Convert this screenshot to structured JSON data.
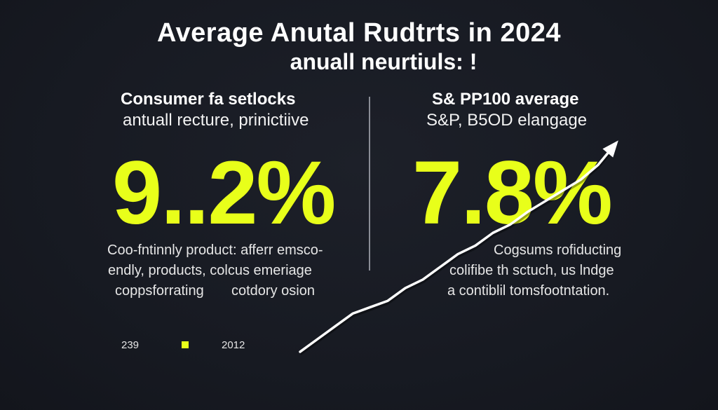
{
  "header": {
    "title_line1": "Average Anutal Rudtrts in 2024",
    "title_line2": "anuall neurtiuls: !"
  },
  "left_panel": {
    "heading": "Consumer fa setlocks",
    "subheading": "antuall recture, prinictiive",
    "value": "9..2%",
    "desc_line1": "Coo-fntinnly product: afferr emsco-",
    "desc_line2": "endly, products, colcus emeriage",
    "desc_line3_a": "coppsforrating",
    "desc_line3_b": "cotdory osion"
  },
  "right_panel": {
    "heading": "S& PP100 average",
    "subheading": "S&P, B5OD elangage",
    "value": "7.8%",
    "desc_line1": "Cogsums rofiducting",
    "desc_line2": "colifibe th sctuch, us lndge",
    "desc_line3": "a contiblil tomsfootntation."
  },
  "legend": {
    "item1_label": "239",
    "item2_label": "2012",
    "swatch_color": "#e8ff1a"
  },
  "colors": {
    "accent": "#e8ff1a",
    "background": "#171a22",
    "trend_line": "#ffffff"
  },
  "chart_data": {
    "type": "line",
    "title": "Average Anutal Rudtrts in 2024",
    "xlabel": "",
    "ylabel": "",
    "series": [
      {
        "values": [
          2,
          8,
          14,
          20,
          23,
          26,
          32,
          36,
          42,
          48,
          52,
          58,
          62,
          68,
          73,
          78,
          83,
          90,
          100
        ]
      }
    ],
    "ylim": [
      0,
      100
    ],
    "grid": false,
    "legend": "none"
  }
}
